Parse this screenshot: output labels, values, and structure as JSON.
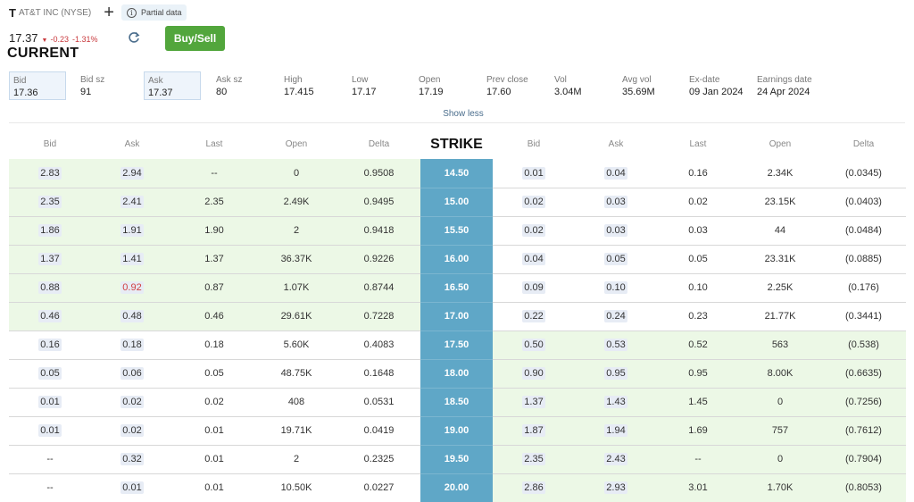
{
  "header": {
    "ticker_logo": "T",
    "ticker_name": "AT&T INC (NYSE)",
    "partial_label": "Partial data",
    "price": "17.37",
    "change": "-0.23",
    "change_pct": "-1.31%",
    "buy_sell_label": "Buy/Sell",
    "current_label": "CURRENT"
  },
  "stats": [
    {
      "label": "Bid",
      "value": "17.36"
    },
    {
      "label": "Bid sz",
      "value": "91"
    },
    {
      "label": "Ask",
      "value": "17.37"
    },
    {
      "label": "Ask sz",
      "value": "80"
    },
    {
      "label": "High",
      "value": "17.415"
    },
    {
      "label": "Low",
      "value": "17.17"
    },
    {
      "label": "Open",
      "value": "17.19"
    },
    {
      "label": "Prev close",
      "value": "17.60"
    },
    {
      "label": "Vol",
      "value": "3.04M"
    },
    {
      "label": "Avg vol",
      "value": "35.69M"
    },
    {
      "label": "Ex-date",
      "value": "09 Jan 2024"
    },
    {
      "label": "Earnings date",
      "value": "24 Apr 2024"
    }
  ],
  "show_less_label": "Show less",
  "columns": [
    "Bid",
    "Ask",
    "Last",
    "Open",
    "Delta",
    "STRIKE",
    "Bid",
    "Ask",
    "Last",
    "Open",
    "Delta"
  ],
  "rows": [
    {
      "call": [
        "2.83",
        "2.94",
        "--",
        "0",
        "0.9508"
      ],
      "strike": "14.50",
      "put": [
        "0.01",
        "0.04",
        "0.16",
        "2.34K",
        "(0.0345)"
      ],
      "call_itm": true,
      "put_itm": false
    },
    {
      "call": [
        "2.35",
        "2.41",
        "2.35",
        "2.49K",
        "0.9495"
      ],
      "strike": "15.00",
      "put": [
        "0.02",
        "0.03",
        "0.02",
        "23.15K",
        "(0.0403)"
      ],
      "call_itm": true,
      "put_itm": false
    },
    {
      "call": [
        "1.86",
        "1.91",
        "1.90",
        "2",
        "0.9418"
      ],
      "strike": "15.50",
      "put": [
        "0.02",
        "0.03",
        "0.03",
        "44",
        "(0.0484)"
      ],
      "call_itm": true,
      "put_itm": false
    },
    {
      "call": [
        "1.37",
        "1.41",
        "1.37",
        "36.37K",
        "0.9226"
      ],
      "strike": "16.00",
      "put": [
        "0.04",
        "0.05",
        "0.05",
        "23.31K",
        "(0.0885)"
      ],
      "call_itm": true,
      "put_itm": false
    },
    {
      "call": [
        "0.88",
        "0.92",
        "0.87",
        "1.07K",
        "0.8744"
      ],
      "strike": "16.50",
      "put": [
        "0.09",
        "0.10",
        "0.10",
        "2.25K",
        "(0.176)"
      ],
      "call_itm": true,
      "put_itm": false,
      "ask_red": true
    },
    {
      "call": [
        "0.46",
        "0.48",
        "0.46",
        "29.61K",
        "0.7228"
      ],
      "strike": "17.00",
      "put": [
        "0.22",
        "0.24",
        "0.23",
        "21.77K",
        "(0.3441)"
      ],
      "call_itm": true,
      "put_itm": false
    },
    {
      "call": [
        "0.16",
        "0.18",
        "0.18",
        "5.60K",
        "0.4083"
      ],
      "strike": "17.50",
      "put": [
        "0.50",
        "0.53",
        "0.52",
        "563",
        "(0.538)"
      ],
      "call_itm": false,
      "put_itm": true
    },
    {
      "call": [
        "0.05",
        "0.06",
        "0.05",
        "48.75K",
        "0.1648"
      ],
      "strike": "18.00",
      "put": [
        "0.90",
        "0.95",
        "0.95",
        "8.00K",
        "(0.6635)"
      ],
      "call_itm": false,
      "put_itm": true
    },
    {
      "call": [
        "0.01",
        "0.02",
        "0.02",
        "408",
        "0.0531"
      ],
      "strike": "18.50",
      "put": [
        "1.37",
        "1.43",
        "1.45",
        "0",
        "(0.7256)"
      ],
      "call_itm": false,
      "put_itm": true
    },
    {
      "call": [
        "0.01",
        "0.02",
        "0.01",
        "19.71K",
        "0.0419"
      ],
      "strike": "19.00",
      "put": [
        "1.87",
        "1.94",
        "1.69",
        "757",
        "(0.7612)"
      ],
      "call_itm": false,
      "put_itm": true
    },
    {
      "call": [
        "--",
        "0.32",
        "0.01",
        "2",
        "0.2325"
      ],
      "strike": "19.50",
      "put": [
        "2.35",
        "2.43",
        "--",
        "0",
        "(0.7904)"
      ],
      "call_itm": false,
      "put_itm": true
    },
    {
      "call": [
        "--",
        "0.01",
        "0.01",
        "10.50K",
        "0.0227"
      ],
      "strike": "20.00",
      "put": [
        "2.86",
        "2.93",
        "3.01",
        "1.70K",
        "(0.8053)"
      ],
      "call_itm": false,
      "put_itm": true
    }
  ]
}
